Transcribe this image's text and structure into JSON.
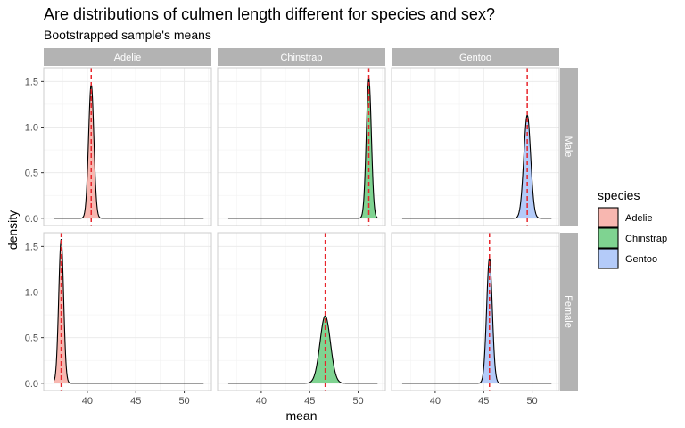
{
  "chart_data": {
    "type": "area",
    "title": "Are distributions of culmen length different for species and sex?",
    "subtitle": "Bootstrapped sample's means",
    "xlabel": "mean",
    "ylabel": "density",
    "xlim": [
      35.5,
      52.8
    ],
    "ylim": [
      -0.08,
      1.65
    ],
    "x_ticks": [
      40,
      45,
      50
    ],
    "y_ticks": [
      0.0,
      0.5,
      1.0,
      1.5
    ],
    "y_tick_labels": [
      "0.0",
      "0.5",
      "1.0",
      "1.5"
    ],
    "density_support": [
      36.6,
      52.0
    ],
    "grid": true,
    "facet_columns": [
      "Adelie",
      "Chinstrap",
      "Gentoo"
    ],
    "facet_rows": [
      "Male",
      "Female"
    ],
    "legend": {
      "title": "species",
      "position": "right",
      "entries": [
        {
          "name": "Adelie",
          "color": "#F8B7B0"
        },
        {
          "name": "Chinstrap",
          "color": "#7FD391"
        },
        {
          "name": "Gentoo",
          "color": "#B4CBF9"
        }
      ]
    },
    "mean_line_color": "#E8262C",
    "series": [
      {
        "species": "Adelie",
        "sex": "Male",
        "mean": 40.4,
        "peak_density": 1.47
      },
      {
        "species": "Chinstrap",
        "sex": "Male",
        "mean": 51.1,
        "peak_density": 1.53
      },
      {
        "species": "Gentoo",
        "sex": "Male",
        "mean": 49.5,
        "peak_density": 1.13
      },
      {
        "species": "Adelie",
        "sex": "Female",
        "mean": 37.3,
        "peak_density": 1.58
      },
      {
        "species": "Chinstrap",
        "sex": "Female",
        "mean": 46.6,
        "peak_density": 0.74
      },
      {
        "species": "Gentoo",
        "sex": "Female",
        "mean": 45.6,
        "peak_density": 1.37
      }
    ]
  }
}
